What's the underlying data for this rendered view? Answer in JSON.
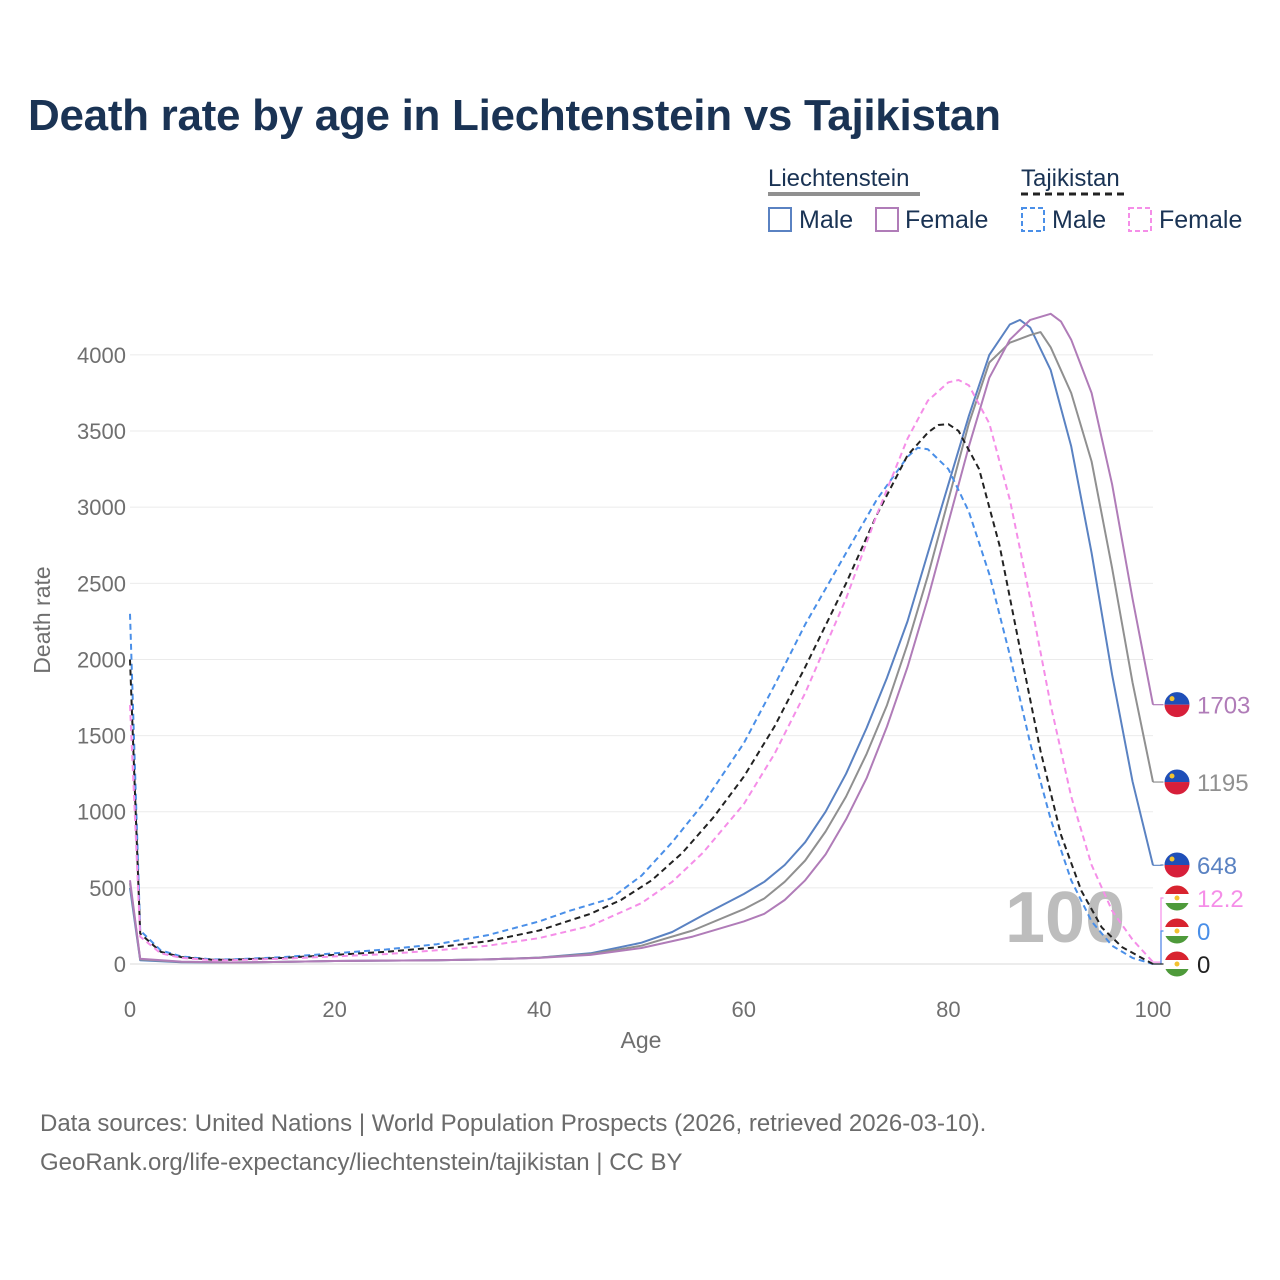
{
  "title": "Death rate by age in Liechtenstein vs Tajikistan",
  "footer": {
    "line1": "Data sources: United Nations | World Population Prospects (2026, retrieved 2026-03-10).",
    "line2": "GeoRank.org/life-expectancy/liechtenstein/tajikistan | CC BY"
  },
  "legend": {
    "groups": [
      {
        "name": "Liechtenstein",
        "line_color": "#909090",
        "dash": "solid"
      },
      {
        "name": "Tajikistan",
        "line_color": "#222222",
        "dash": "dashed"
      }
    ],
    "items": [
      {
        "label": "Male",
        "color": "#5a82c2",
        "dash": "solid"
      },
      {
        "label": "Female",
        "color": "#b07cb8",
        "dash": "solid"
      },
      {
        "label": "Male",
        "color": "#4a8fe8",
        "dash": "dashed"
      },
      {
        "label": "Female",
        "color": "#f58ee8",
        "dash": "dashed"
      }
    ]
  },
  "watermark": "100",
  "chart_data": {
    "type": "line",
    "title": "Death rate by age in Liechtenstein vs Tajikistan",
    "xlabel": "Age",
    "ylabel": "Death rate",
    "xlim": [
      0,
      100
    ],
    "ylim": [
      0,
      4400
    ],
    "xticks": [
      0,
      20,
      40,
      60,
      80,
      100
    ],
    "yticks": [
      0,
      500,
      1000,
      1500,
      2000,
      2500,
      3000,
      3500,
      4000
    ],
    "grid": true,
    "series": [
      {
        "name": "Liechtenstein Male",
        "color": "#5a82c2",
        "dash": "solid",
        "points": [
          [
            0,
            500
          ],
          [
            1,
            25
          ],
          [
            5,
            12
          ],
          [
            10,
            10
          ],
          [
            15,
            14
          ],
          [
            20,
            20
          ],
          [
            25,
            22
          ],
          [
            30,
            24
          ],
          [
            35,
            30
          ],
          [
            40,
            42
          ],
          [
            45,
            70
          ],
          [
            50,
            140
          ],
          [
            53,
            210
          ],
          [
            56,
            320
          ],
          [
            60,
            460
          ],
          [
            62,
            540
          ],
          [
            64,
            650
          ],
          [
            66,
            800
          ],
          [
            68,
            1000
          ],
          [
            70,
            1250
          ],
          [
            72,
            1550
          ],
          [
            74,
            1880
          ],
          [
            76,
            2250
          ],
          [
            78,
            2700
          ],
          [
            80,
            3150
          ],
          [
            82,
            3600
          ],
          [
            84,
            4000
          ],
          [
            86,
            4200
          ],
          [
            87,
            4230
          ],
          [
            88,
            4180
          ],
          [
            90,
            3900
          ],
          [
            92,
            3400
          ],
          [
            94,
            2700
          ],
          [
            96,
            1900
          ],
          [
            98,
            1200
          ],
          [
            100,
            648
          ]
        ],
        "end_label": "648"
      },
      {
        "name": "Liechtenstein Total",
        "color": "#909090",
        "dash": "solid",
        "points": [
          [
            0,
            530
          ],
          [
            1,
            30
          ],
          [
            5,
            14
          ],
          [
            10,
            10
          ],
          [
            15,
            14
          ],
          [
            20,
            20
          ],
          [
            25,
            22
          ],
          [
            30,
            24
          ],
          [
            35,
            30
          ],
          [
            40,
            42
          ],
          [
            45,
            65
          ],
          [
            50,
            120
          ],
          [
            55,
            220
          ],
          [
            60,
            360
          ],
          [
            62,
            430
          ],
          [
            64,
            540
          ],
          [
            66,
            680
          ],
          [
            68,
            870
          ],
          [
            70,
            1100
          ],
          [
            72,
            1380
          ],
          [
            74,
            1700
          ],
          [
            76,
            2100
          ],
          [
            78,
            2550
          ],
          [
            80,
            3050
          ],
          [
            82,
            3550
          ],
          [
            84,
            3950
          ],
          [
            86,
            4080
          ],
          [
            88,
            4130
          ],
          [
            89,
            4150
          ],
          [
            90,
            4050
          ],
          [
            92,
            3750
          ],
          [
            94,
            3300
          ],
          [
            96,
            2600
          ],
          [
            98,
            1850
          ],
          [
            100,
            1195
          ]
        ],
        "end_label": "1195"
      },
      {
        "name": "Liechtenstein Female",
        "color": "#b07cb8",
        "dash": "solid",
        "points": [
          [
            0,
            550
          ],
          [
            1,
            35
          ],
          [
            5,
            16
          ],
          [
            10,
            10
          ],
          [
            15,
            14
          ],
          [
            20,
            20
          ],
          [
            25,
            22
          ],
          [
            30,
            24
          ],
          [
            35,
            30
          ],
          [
            40,
            40
          ],
          [
            45,
            60
          ],
          [
            50,
            105
          ],
          [
            55,
            180
          ],
          [
            60,
            280
          ],
          [
            62,
            330
          ],
          [
            64,
            420
          ],
          [
            66,
            550
          ],
          [
            68,
            720
          ],
          [
            70,
            950
          ],
          [
            72,
            1220
          ],
          [
            74,
            1560
          ],
          [
            76,
            1950
          ],
          [
            78,
            2400
          ],
          [
            80,
            2900
          ],
          [
            82,
            3400
          ],
          [
            84,
            3850
          ],
          [
            86,
            4100
          ],
          [
            88,
            4230
          ],
          [
            90,
            4270
          ],
          [
            91,
            4220
          ],
          [
            92,
            4100
          ],
          [
            94,
            3750
          ],
          [
            96,
            3150
          ],
          [
            98,
            2400
          ],
          [
            100,
            1703
          ]
        ],
        "end_label": "1703"
      },
      {
        "name": "Tajikistan Male",
        "color": "#4a8fe8",
        "dash": "dashed",
        "points": [
          [
            0,
            2300
          ],
          [
            1,
            220
          ],
          [
            3,
            90
          ],
          [
            5,
            50
          ],
          [
            8,
            30
          ],
          [
            10,
            30
          ],
          [
            15,
            45
          ],
          [
            20,
            70
          ],
          [
            25,
            95
          ],
          [
            30,
            130
          ],
          [
            35,
            190
          ],
          [
            40,
            280
          ],
          [
            43,
            350
          ],
          [
            47,
            430
          ],
          [
            50,
            580
          ],
          [
            53,
            800
          ],
          [
            56,
            1050
          ],
          [
            60,
            1450
          ],
          [
            63,
            1830
          ],
          [
            66,
            2230
          ],
          [
            70,
            2700
          ],
          [
            73,
            3050
          ],
          [
            76,
            3330
          ],
          [
            77,
            3390
          ],
          [
            78,
            3380
          ],
          [
            80,
            3250
          ],
          [
            82,
            2970
          ],
          [
            84,
            2560
          ],
          [
            86,
            2030
          ],
          [
            88,
            1450
          ],
          [
            90,
            950
          ],
          [
            92,
            550
          ],
          [
            94,
            280
          ],
          [
            96,
            120
          ],
          [
            98,
            40
          ],
          [
            100,
            0
          ]
        ],
        "end_label": "0"
      },
      {
        "name": "Tajikistan Total",
        "color": "#222222",
        "dash": "dashed",
        "points": [
          [
            0,
            2000
          ],
          [
            1,
            200
          ],
          [
            3,
            80
          ],
          [
            5,
            45
          ],
          [
            8,
            28
          ],
          [
            10,
            28
          ],
          [
            15,
            40
          ],
          [
            20,
            60
          ],
          [
            25,
            80
          ],
          [
            30,
            110
          ],
          [
            35,
            150
          ],
          [
            40,
            220
          ],
          [
            45,
            330
          ],
          [
            48,
            420
          ],
          [
            51,
            550
          ],
          [
            54,
            730
          ],
          [
            57,
            960
          ],
          [
            60,
            1230
          ],
          [
            63,
            1560
          ],
          [
            66,
            1950
          ],
          [
            70,
            2500
          ],
          [
            73,
            2950
          ],
          [
            76,
            3340
          ],
          [
            78,
            3490
          ],
          [
            79,
            3540
          ],
          [
            80,
            3545
          ],
          [
            81,
            3500
          ],
          [
            83,
            3250
          ],
          [
            85,
            2750
          ],
          [
            87,
            2070
          ],
          [
            89,
            1400
          ],
          [
            91,
            850
          ],
          [
            93,
            480
          ],
          [
            95,
            240
          ],
          [
            97,
            110
          ],
          [
            100,
            0
          ]
        ],
        "end_label": "0"
      },
      {
        "name": "Tajikistan Female",
        "color": "#f58ee8",
        "dash": "dashed",
        "points": [
          [
            0,
            1700
          ],
          [
            1,
            180
          ],
          [
            3,
            70
          ],
          [
            5,
            40
          ],
          [
            8,
            25
          ],
          [
            10,
            25
          ],
          [
            15,
            35
          ],
          [
            20,
            50
          ],
          [
            25,
            65
          ],
          [
            30,
            90
          ],
          [
            35,
            120
          ],
          [
            40,
            170
          ],
          [
            45,
            250
          ],
          [
            50,
            400
          ],
          [
            53,
            540
          ],
          [
            56,
            730
          ],
          [
            60,
            1050
          ],
          [
            63,
            1380
          ],
          [
            66,
            1780
          ],
          [
            70,
            2400
          ],
          [
            73,
            2950
          ],
          [
            76,
            3450
          ],
          [
            78,
            3700
          ],
          [
            80,
            3820
          ],
          [
            81,
            3835
          ],
          [
            82,
            3800
          ],
          [
            84,
            3550
          ],
          [
            86,
            3050
          ],
          [
            88,
            2400
          ],
          [
            90,
            1700
          ],
          [
            92,
            1100
          ],
          [
            94,
            650
          ],
          [
            96,
            350
          ],
          [
            98,
            160
          ],
          [
            100,
            12.2
          ]
        ],
        "end_label": "12.2"
      }
    ]
  }
}
